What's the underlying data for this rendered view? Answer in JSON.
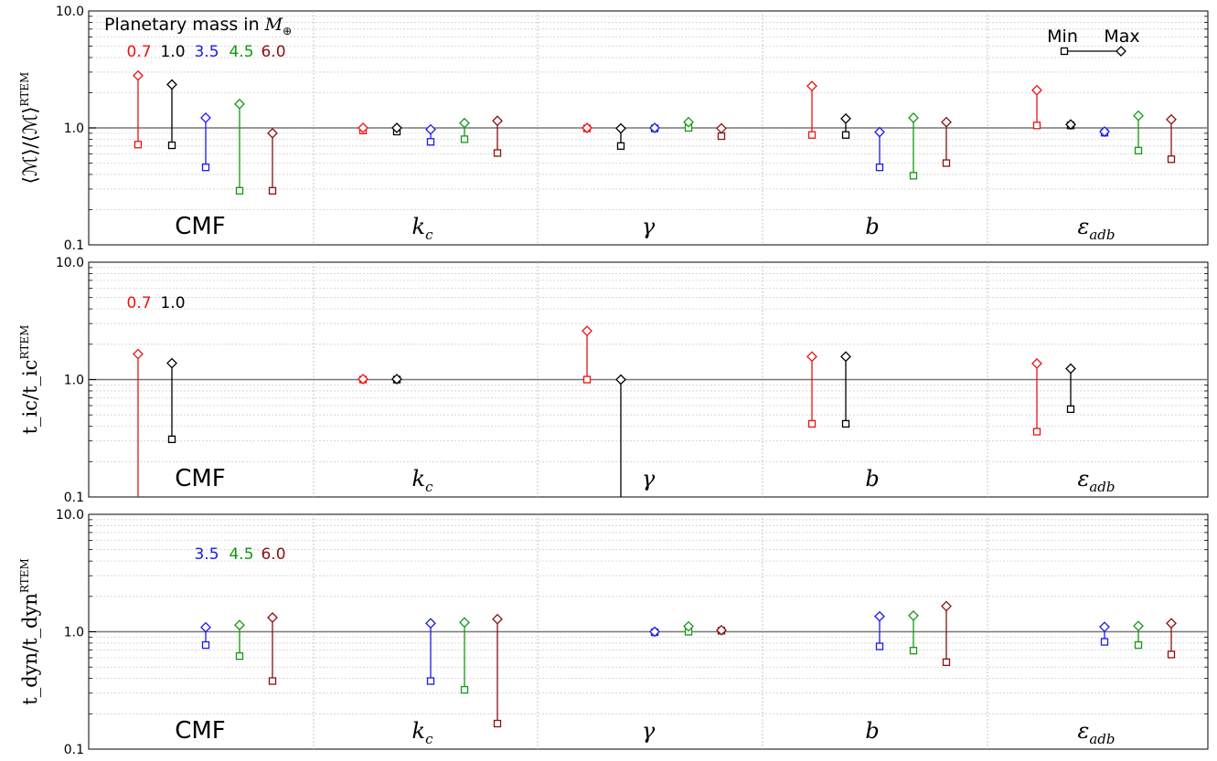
{
  "chart_data": {
    "type": "range-plot",
    "scale": "log",
    "ylim": [
      0.1,
      10.0
    ],
    "grid": true,
    "y_ticks": [
      "10.0",
      "1.0",
      "0.1"
    ],
    "groups": [
      "CMF",
      "k_c",
      "γ",
      "b",
      "ε_adb"
    ],
    "group_labels": [
      {
        "main": "CMF",
        "sub": ""
      },
      {
        "main": "k",
        "sub": "c"
      },
      {
        "main": "γ",
        "sub": ""
      },
      {
        "main": "b",
        "sub": ""
      },
      {
        "main": "ε",
        "sub": "adb"
      }
    ],
    "masses": [
      "0.7",
      "1.0",
      "3.5",
      "4.5",
      "6.0"
    ],
    "colors": {
      "0.7": "#ee1111",
      "1.0": "#000000",
      "3.5": "#1a1aee",
      "4.5": "#119911",
      "6.0": "#8b1010"
    },
    "legend": {
      "title": "Planetary mass in",
      "title_unit": "M",
      "title_unit_sub": "⊕",
      "min_label": "Min",
      "max_label": "Max"
    },
    "panels": [
      {
        "ylabel": "⟨ℳ⟩/⟨ℳ⟩",
        "ylabel_sup": "RTEM",
        "mass_labels": [
          "0.7",
          "1.0",
          "3.5",
          "4.5",
          "6.0"
        ],
        "series": [
          {
            "group": "CMF",
            "mass": "0.7",
            "min": 0.72,
            "max": 2.8
          },
          {
            "group": "CMF",
            "mass": "1.0",
            "min": 0.71,
            "max": 2.35
          },
          {
            "group": "CMF",
            "mass": "3.5",
            "min": 0.46,
            "max": 1.22
          },
          {
            "group": "CMF",
            "mass": "4.5",
            "min": 0.29,
            "max": 1.6
          },
          {
            "group": "CMF",
            "mass": "6.0",
            "min": 0.29,
            "max": 0.9
          },
          {
            "group": "k_c",
            "mass": "0.7",
            "min": 0.95,
            "max": 1.0
          },
          {
            "group": "k_c",
            "mass": "1.0",
            "min": 0.93,
            "max": 1.0
          },
          {
            "group": "k_c",
            "mass": "3.5",
            "min": 0.76,
            "max": 0.97
          },
          {
            "group": "k_c",
            "mass": "4.5",
            "min": 0.8,
            "max": 1.1
          },
          {
            "group": "k_c",
            "mass": "6.0",
            "min": 0.61,
            "max": 1.15
          },
          {
            "group": "γ",
            "mass": "0.7",
            "min": 0.99,
            "max": 1.0
          },
          {
            "group": "γ",
            "mass": "1.0",
            "min": 0.7,
            "max": 0.99
          },
          {
            "group": "γ",
            "mass": "3.5",
            "min": 0.99,
            "max": 1.0
          },
          {
            "group": "γ",
            "mass": "4.5",
            "min": 1.0,
            "max": 1.12
          },
          {
            "group": "γ",
            "mass": "6.0",
            "min": 0.85,
            "max": 0.99
          },
          {
            "group": "b",
            "mass": "0.7",
            "min": 0.87,
            "max": 2.28
          },
          {
            "group": "b",
            "mass": "1.0",
            "min": 0.87,
            "max": 1.2
          },
          {
            "group": "b",
            "mass": "3.5",
            "min": 0.46,
            "max": 0.92
          },
          {
            "group": "b",
            "mass": "4.5",
            "min": 0.39,
            "max": 1.22
          },
          {
            "group": "b",
            "mass": "6.0",
            "min": 0.5,
            "max": 1.12
          },
          {
            "group": "ε_adb",
            "mass": "0.7",
            "min": 1.05,
            "max": 2.1
          },
          {
            "group": "ε_adb",
            "mass": "1.0",
            "min": 1.05,
            "max": 1.07
          },
          {
            "group": "ε_adb",
            "mass": "3.5",
            "min": 0.91,
            "max": 0.93
          },
          {
            "group": "ε_adb",
            "mass": "4.5",
            "min": 0.64,
            "max": 1.27
          },
          {
            "group": "ε_adb",
            "mass": "6.0",
            "min": 0.54,
            "max": 1.18
          }
        ]
      },
      {
        "ylabel": "t_ic/t_ic",
        "ylabel_sup": "RTEM",
        "mass_labels": [
          "0.7",
          "1.0"
        ],
        "series": [
          {
            "group": "CMF",
            "mass": "0.7",
            "min": 0.1,
            "max": 1.65
          },
          {
            "group": "CMF",
            "mass": "1.0",
            "min": 0.31,
            "max": 1.38
          },
          {
            "group": "k_c",
            "mass": "0.7",
            "min": 1.0,
            "max": 1.01
          },
          {
            "group": "k_c",
            "mass": "1.0",
            "min": 1.0,
            "max": 1.01
          },
          {
            "group": "γ",
            "mass": "0.7",
            "min": 1.0,
            "max": 2.6
          },
          {
            "group": "γ",
            "mass": "1.0",
            "min": 0.1,
            "max": 1.0
          },
          {
            "group": "b",
            "mass": "0.7",
            "min": 0.42,
            "max": 1.57
          },
          {
            "group": "b",
            "mass": "1.0",
            "min": 0.42,
            "max": 1.57
          },
          {
            "group": "ε_adb",
            "mass": "0.7",
            "min": 0.36,
            "max": 1.37
          },
          {
            "group": "ε_adb",
            "mass": "1.0",
            "min": 0.56,
            "max": 1.24
          }
        ]
      },
      {
        "ylabel": "t_dyn/t_dyn",
        "ylabel_sup": "RTEM",
        "mass_labels": [
          "3.5",
          "4.5",
          "6.0"
        ],
        "series": [
          {
            "group": "CMF",
            "mass": "3.5",
            "min": 0.77,
            "max": 1.09
          },
          {
            "group": "CMF",
            "mass": "4.5",
            "min": 0.62,
            "max": 1.14
          },
          {
            "group": "CMF",
            "mass": "6.0",
            "min": 0.38,
            "max": 1.32
          },
          {
            "group": "k_c",
            "mass": "3.5",
            "min": 0.38,
            "max": 1.18
          },
          {
            "group": "k_c",
            "mass": "4.5",
            "min": 0.32,
            "max": 1.2
          },
          {
            "group": "k_c",
            "mass": "6.0",
            "min": 0.165,
            "max": 1.28
          },
          {
            "group": "γ",
            "mass": "3.5",
            "min": 0.99,
            "max": 1.0
          },
          {
            "group": "γ",
            "mass": "4.5",
            "min": 1.0,
            "max": 1.11
          },
          {
            "group": "γ",
            "mass": "6.0",
            "min": 1.02,
            "max": 1.03
          },
          {
            "group": "b",
            "mass": "3.5",
            "min": 0.75,
            "max": 1.35
          },
          {
            "group": "b",
            "mass": "4.5",
            "min": 0.69,
            "max": 1.37
          },
          {
            "group": "b",
            "mass": "6.0",
            "min": 0.55,
            "max": 1.65
          },
          {
            "group": "ε_adb",
            "mass": "3.5",
            "min": 0.82,
            "max": 1.1
          },
          {
            "group": "ε_adb",
            "mass": "4.5",
            "min": 0.77,
            "max": 1.12
          },
          {
            "group": "ε_adb",
            "mass": "6.0",
            "min": 0.64,
            "max": 1.18
          }
        ]
      }
    ]
  }
}
